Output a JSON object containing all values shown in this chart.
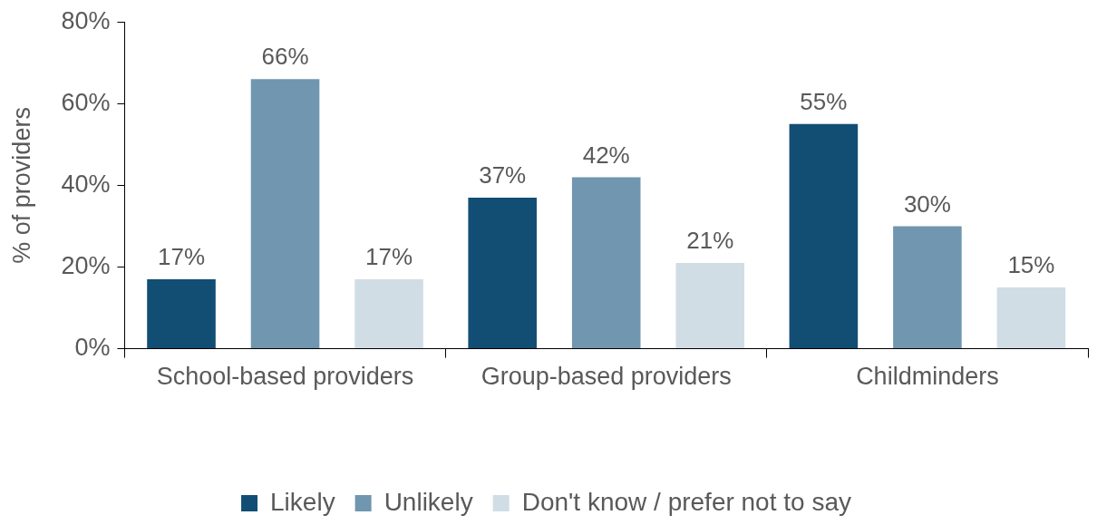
{
  "chart_data": {
    "type": "bar",
    "ylabel": "% of providers",
    "categories": [
      "School-based providers",
      "Group-based providers",
      "Childminders"
    ],
    "series": [
      {
        "name": "Likely",
        "color": "#124e73",
        "values": [
          17,
          37,
          55
        ],
        "value_labels": [
          "17%",
          "37%",
          "55%"
        ]
      },
      {
        "name": "Unlikely",
        "color": "#7096b0",
        "values": [
          66,
          42,
          30
        ],
        "value_labels": [
          "66%",
          "42%",
          "30%"
        ]
      },
      {
        "name": "Don't know / prefer not to say",
        "color": "#d0dde5",
        "values": [
          17,
          21,
          15
        ],
        "value_labels": [
          "17%",
          "21%",
          "15%"
        ]
      }
    ],
    "ylim": [
      0,
      80
    ],
    "yticks": [
      {
        "value": 0,
        "label": "0%"
      },
      {
        "value": 20,
        "label": "20%"
      },
      {
        "value": 40,
        "label": "40%"
      },
      {
        "value": 60,
        "label": "60%"
      },
      {
        "value": 80,
        "label": "80%"
      }
    ],
    "grid": false,
    "legend": "bottom"
  }
}
